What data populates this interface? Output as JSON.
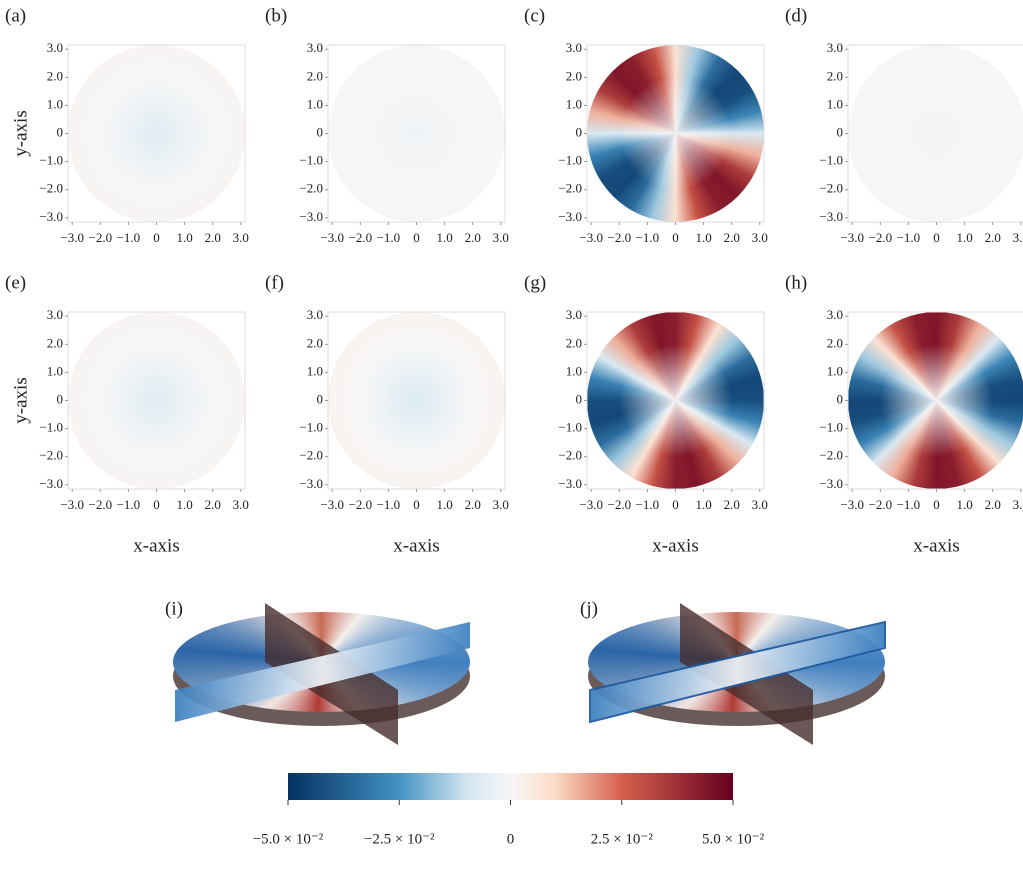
{
  "chart_data": {
    "type": "heatmap",
    "panels": [
      {
        "label": "(a)",
        "center": -0.006,
        "edge": 0.002
      },
      {
        "label": "(b)",
        "center": -0.002,
        "edge": 0.001
      },
      {
        "label": "(c)",
        "quadrupole": 0.045,
        "peak_angle": 320
      },
      {
        "label": "(d)",
        "center": -0.001,
        "edge": 0.001
      },
      {
        "label": "(e)",
        "center": -0.006,
        "edge": 0.002
      },
      {
        "label": "(f)",
        "center": -0.007,
        "edge": 0.003
      },
      {
        "label": "(g)",
        "quadrupole": 0.045,
        "peak_angle": 350
      },
      {
        "label": "(h)",
        "quadrupole": 0.045,
        "peak_angle": 355
      }
    ],
    "xlabel": "x-axis",
    "ylabel": "y-axis",
    "xlim": [
      -3.15,
      3.15
    ],
    "ylim": [
      -3.15,
      3.15
    ],
    "xticks": [
      {
        "value": -3,
        "label": "−3.0"
      },
      {
        "value": -2,
        "label": "−2.0"
      },
      {
        "value": -1,
        "label": "−1.0"
      },
      0,
      {
        "value": 1,
        "label": "1.0"
      },
      {
        "value": 2,
        "label": "2.0"
      },
      {
        "value": 3,
        "label": "3.0"
      }
    ],
    "yticks": [
      {
        "value": 3,
        "label": "3.0"
      },
      {
        "value": 2,
        "label": "2.0"
      },
      {
        "value": 1,
        "label": "1.0"
      },
      0,
      {
        "value": -1,
        "label": "−1.0"
      },
      {
        "value": -2,
        "label": "−2.0"
      },
      {
        "value": -3,
        "label": "−3.0"
      }
    ],
    "surface_panels": [
      {
        "label": "(i)"
      },
      {
        "label": "(j)"
      }
    ],
    "colorbar": {
      "lim": [
        -0.05,
        0.05
      ],
      "ticks": [
        {
          "value": -0.05,
          "label": "−5.0 × 10⁻²"
        },
        {
          "value": -0.025,
          "label": "−2.5 × 10⁻²"
        },
        0,
        {
          "value": 0.025,
          "label": "2.5 × 10⁻²"
        },
        {
          "value": 0.05,
          "label": "5.0 × 10⁻²"
        }
      ]
    }
  }
}
